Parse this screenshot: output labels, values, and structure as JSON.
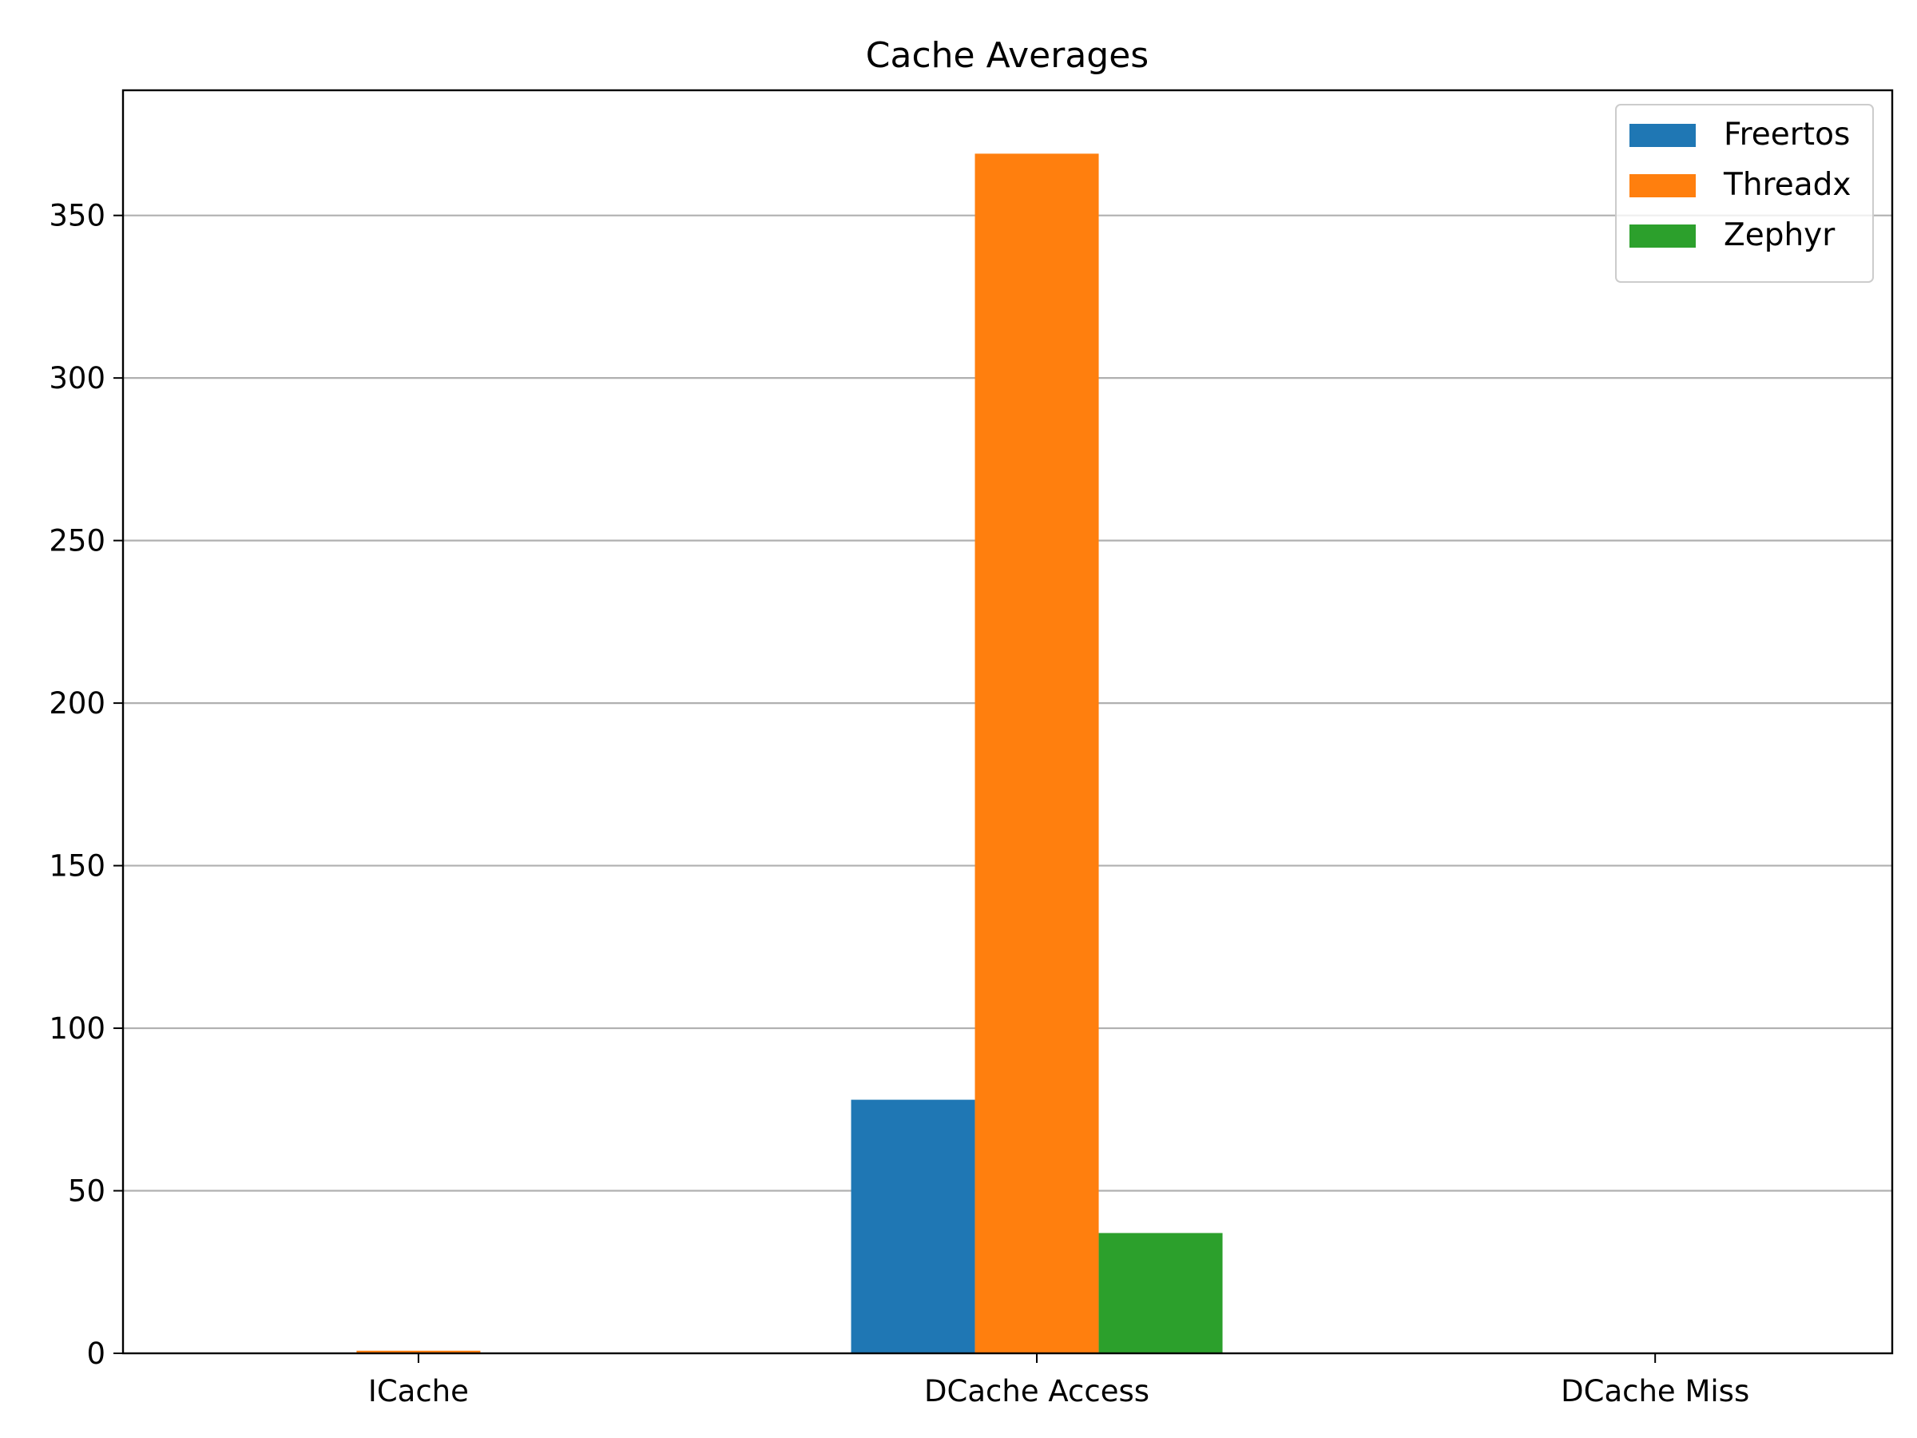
{
  "chart_data": {
    "type": "bar",
    "title": "Cache Averages",
    "xlabel": "",
    "ylabel": "",
    "categories": [
      "ICache",
      "DCache Access",
      "DCache Miss"
    ],
    "series": [
      {
        "name": "Freertos",
        "color": "#1f77b4",
        "values": [
          0,
          78,
          0
        ]
      },
      {
        "name": "Threadx",
        "color": "#ff7f0e",
        "values": [
          0.8,
          369,
          0
        ]
      },
      {
        "name": "Zephyr",
        "color": "#2ca02c",
        "values": [
          0,
          37,
          0
        ]
      }
    ],
    "ylim": [
      0,
      388.5
    ],
    "yticks": [
      0,
      50,
      100,
      150,
      200,
      250,
      300,
      350
    ],
    "grid": "y-major",
    "legend_position": "top-right"
  }
}
